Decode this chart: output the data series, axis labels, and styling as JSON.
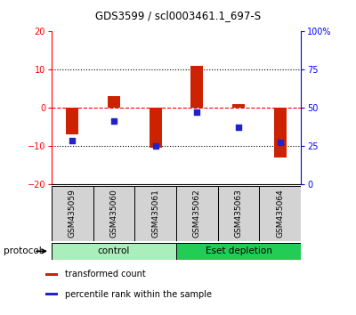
{
  "title": "GDS3599 / scl0003461.1_697-S",
  "samples": [
    "GSM435059",
    "GSM435060",
    "GSM435061",
    "GSM435062",
    "GSM435063",
    "GSM435064"
  ],
  "red_bars": [
    -7.0,
    3.0,
    -10.5,
    11.0,
    1.0,
    -13.0
  ],
  "blue_dots_left": [
    -8.5,
    -3.5,
    -10.0,
    -1.0,
    -5.0,
    -9.0
  ],
  "ylim_left": [
    -20,
    20
  ],
  "ylim_right": [
    0,
    100
  ],
  "yticks_left": [
    -20,
    -10,
    0,
    10,
    20
  ],
  "yticks_right": [
    0,
    25,
    50,
    75,
    100
  ],
  "yticklabels_right": [
    "0",
    "25",
    "50",
    "75",
    "100%"
  ],
  "hlines_dotted": [
    -10,
    10
  ],
  "hline_dashed": 0,
  "groups": [
    {
      "label": "control",
      "samples": [
        0,
        1,
        2
      ],
      "color": "#AAEEBB"
    },
    {
      "label": "Eset depletion",
      "samples": [
        3,
        4,
        5
      ],
      "color": "#22CC55"
    }
  ],
  "protocol_label": "protocol",
  "legend": [
    {
      "color": "#CC2200",
      "label": "transformed count"
    },
    {
      "color": "#2222CC",
      "label": "percentile rank within the sample"
    }
  ],
  "bar_color": "#CC2200",
  "dot_color": "#2222CC",
  "bar_width": 0.3,
  "background_color": "#ffffff",
  "title_fontsize": 8.5,
  "tick_fontsize": 7,
  "label_fontsize": 6.5,
  "group_fontsize": 7.5,
  "legend_fontsize": 7
}
